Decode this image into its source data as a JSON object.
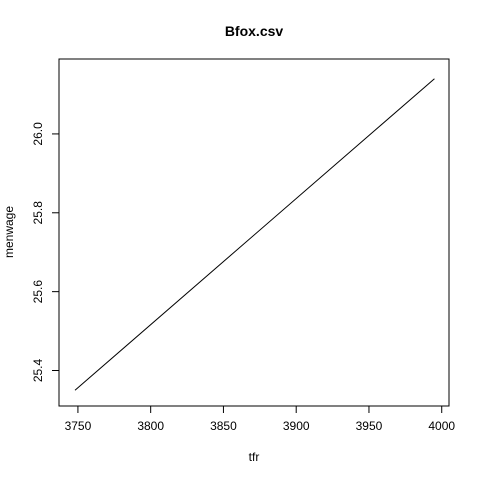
{
  "chart_data": {
    "type": "line",
    "title": "Bfox.csv",
    "xlabel": "tfr",
    "ylabel": "menwage",
    "xlim": [
      3737,
      4005
    ],
    "ylim": [
      25.31,
      26.19
    ],
    "x_ticks": [
      3750,
      3800,
      3850,
      3900,
      3950,
      4000
    ],
    "y_ticks": [
      25.4,
      25.6,
      25.8,
      26.0
    ],
    "x_tick_labels": [
      "3750",
      "3800",
      "3850",
      "3900",
      "3950",
      "4000"
    ],
    "y_tick_labels": [
      "25.4",
      "25.6",
      "25.8",
      "26.0"
    ],
    "series": [
      {
        "x": [
          3748,
          3995
        ],
        "y": [
          25.35,
          26.14
        ]
      }
    ],
    "grid": false,
    "legend": "none",
    "color": "#000000"
  }
}
